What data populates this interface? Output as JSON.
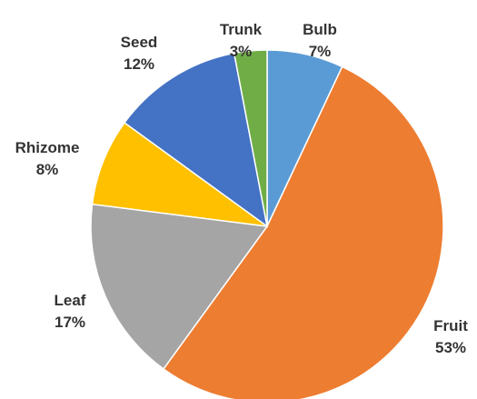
{
  "chart_data": {
    "type": "pie",
    "title": "",
    "slices": [
      {
        "label": "Bulb",
        "value": 7,
        "value_text": "7%",
        "color": "#5B9BD5"
      },
      {
        "label": "Fruit",
        "value": 53,
        "value_text": "53%",
        "color": "#ED7D31"
      },
      {
        "label": "Leaf",
        "value": 17,
        "value_text": "17%",
        "color": "#A5A5A5"
      },
      {
        "label": "Rhizome",
        "value": 8,
        "value_text": "8%",
        "color": "#FFC000"
      },
      {
        "label": "Seed",
        "value": 12,
        "value_text": "12%",
        "color": "#4472C4"
      },
      {
        "label": "Trunk",
        "value": 3,
        "value_text": "3%",
        "color": "#70AD47"
      }
    ],
    "start_direction": "12 o'clock",
    "direction": "clockwise",
    "labels": "outside end",
    "legend": "none"
  }
}
